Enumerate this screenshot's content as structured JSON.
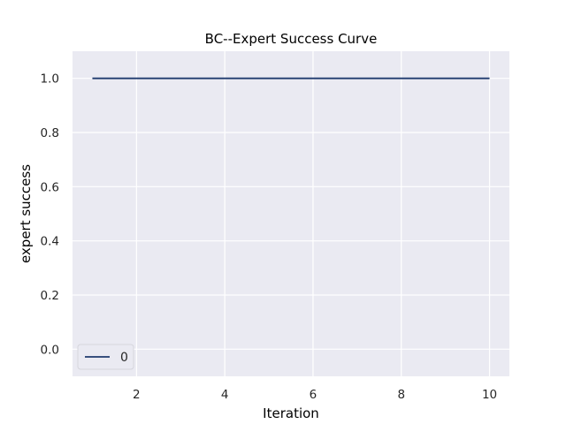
{
  "chart_data": {
    "type": "line",
    "title": "BC--Expert Success Curve",
    "xlabel": "Iteration",
    "ylabel": "expert success",
    "xlim": [
      0.55,
      10.45
    ],
    "ylim": [
      -0.1,
      1.1
    ],
    "xticks": [
      2,
      4,
      6,
      8,
      10
    ],
    "yticks": [
      0.0,
      0.2,
      0.4,
      0.6,
      0.8,
      1.0
    ],
    "grid": true,
    "legend": "lower-left",
    "series": [
      {
        "name": "0",
        "color": "#1f3a6e",
        "x": [
          1,
          2,
          3,
          4,
          5,
          6,
          7,
          8,
          9,
          10
        ],
        "y": [
          1.0,
          1.0,
          1.0,
          1.0,
          1.0,
          1.0,
          1.0,
          1.0,
          1.0,
          1.0
        ]
      }
    ],
    "background": "#eaeaf2"
  }
}
